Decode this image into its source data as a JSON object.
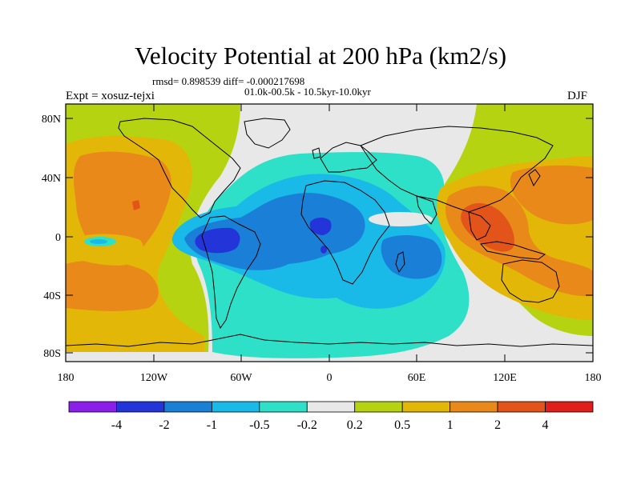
{
  "title": "Velocity Potential at 200 hPa (km2/s)",
  "stats_line": "rmsd= 0.898539 diff= -0.000217698",
  "period_line": "01.0k-00.5k - 10.5kyr-10.0kyr",
  "experiment": "Expt = xosuz-tejxi",
  "season": "DJF",
  "lat_ticks": [
    "80N",
    "40N",
    "0",
    "40S",
    "80S"
  ],
  "lon_ticks": [
    "180",
    "120W",
    "60W",
    "0",
    "60E",
    "120E",
    "180"
  ],
  "colorbar": {
    "colors": [
      "#8b1ee8",
      "#2334d8",
      "#1a7fd6",
      "#19b9e8",
      "#2ee0c8",
      "#e8e8e8",
      "#b6d312",
      "#e3b708",
      "#e8891a",
      "#e2541a",
      "#e01e1a"
    ],
    "labels": [
      "-4",
      "-2",
      "-1",
      "-0.5",
      "-0.2",
      "0.2",
      "0.5",
      "1",
      "2",
      "4"
    ]
  },
  "palette": {
    "c_neg2": "#2334d8",
    "c_neg1": "#1a7fd6",
    "c_neg05": "#19b9e8",
    "c_neg02": "#2ee0c8",
    "c_zero": "#e8e8e8",
    "c_pos02": "#b6d312",
    "c_pos05": "#e3b708",
    "c_pos1": "#e8891a",
    "c_pos2": "#e2541a"
  }
}
